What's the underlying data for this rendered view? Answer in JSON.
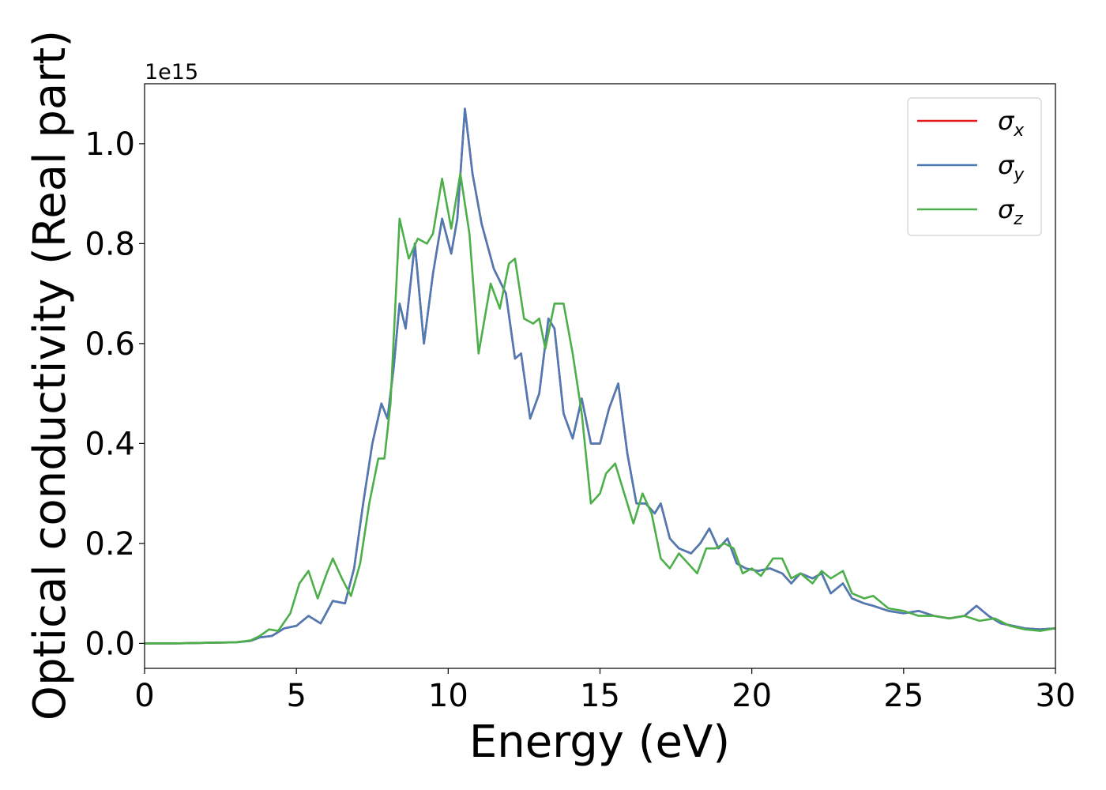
{
  "chart_data": {
    "type": "line",
    "xlabel": "Energy (eV)",
    "ylabel": "Optical conductivity (Real part)",
    "y_offset_text": "1e15",
    "xlim": [
      0,
      30
    ],
    "ylim": [
      -0.05,
      1.12
    ],
    "xticks": [
      0,
      5,
      10,
      15,
      20,
      25,
      30
    ],
    "xtick_labels": [
      "0",
      "5",
      "10",
      "15",
      "20",
      "25",
      "30"
    ],
    "yticks": [
      0.0,
      0.2,
      0.4,
      0.6,
      0.8,
      1.0
    ],
    "ytick_labels": [
      "0.0",
      "0.2",
      "0.4",
      "0.6",
      "0.8",
      "1.0"
    ],
    "grid": false,
    "legend_position": "top-right",
    "series": [
      {
        "name": "σx",
        "legend_base": "σ",
        "legend_sub": "x",
        "color": "#e41a1c",
        "x": [
          0,
          1,
          2,
          3,
          3.5,
          3.8,
          4.2,
          4.6,
          5.0,
          5.4,
          5.8,
          6.2,
          6.6,
          6.9,
          7.2,
          7.5,
          7.8,
          8.0,
          8.2,
          8.4,
          8.6,
          8.9,
          9.2,
          9.5,
          9.8,
          10.1,
          10.3,
          10.55,
          10.8,
          11.1,
          11.5,
          11.9,
          12.2,
          12.4,
          12.7,
          13.0,
          13.3,
          13.5,
          13.8,
          14.1,
          14.4,
          14.7,
          15.0,
          15.3,
          15.6,
          15.9,
          16.2,
          16.5,
          16.8,
          17.0,
          17.3,
          17.6,
          18.0,
          18.3,
          18.6,
          18.9,
          19.2,
          19.5,
          19.8,
          20.2,
          20.6,
          21.0,
          21.3,
          21.6,
          22.0,
          22.3,
          22.6,
          23.0,
          23.3,
          23.7,
          24.0,
          24.5,
          25.0,
          25.5,
          26.0,
          26.5,
          27.0,
          27.4,
          27.8,
          28.2,
          28.6,
          29.0,
          29.5,
          30.0
        ],
        "y": [
          0,
          0,
          0.001,
          0.002,
          0.005,
          0.012,
          0.015,
          0.03,
          0.035,
          0.055,
          0.04,
          0.085,
          0.08,
          0.15,
          0.28,
          0.4,
          0.48,
          0.45,
          0.55,
          0.68,
          0.63,
          0.8,
          0.6,
          0.74,
          0.85,
          0.78,
          0.85,
          1.07,
          0.94,
          0.84,
          0.75,
          0.7,
          0.57,
          0.58,
          0.45,
          0.5,
          0.65,
          0.63,
          0.46,
          0.41,
          0.49,
          0.4,
          0.4,
          0.47,
          0.52,
          0.38,
          0.28,
          0.28,
          0.26,
          0.28,
          0.21,
          0.19,
          0.18,
          0.2,
          0.23,
          0.19,
          0.21,
          0.16,
          0.15,
          0.145,
          0.15,
          0.14,
          0.12,
          0.14,
          0.13,
          0.14,
          0.1,
          0.12,
          0.09,
          0.08,
          0.075,
          0.065,
          0.06,
          0.065,
          0.055,
          0.05,
          0.055,
          0.075,
          0.055,
          0.04,
          0.035,
          0.03,
          0.028,
          0.03
        ]
      },
      {
        "name": "σy",
        "legend_base": "σ",
        "legend_sub": "y",
        "color": "#4d7bb5",
        "x": [
          0,
          1,
          2,
          3,
          3.5,
          3.8,
          4.2,
          4.6,
          5.0,
          5.4,
          5.8,
          6.2,
          6.6,
          6.9,
          7.2,
          7.5,
          7.8,
          8.0,
          8.2,
          8.4,
          8.6,
          8.9,
          9.2,
          9.5,
          9.8,
          10.1,
          10.3,
          10.55,
          10.8,
          11.1,
          11.5,
          11.9,
          12.2,
          12.4,
          12.7,
          13.0,
          13.3,
          13.5,
          13.8,
          14.1,
          14.4,
          14.7,
          15.0,
          15.3,
          15.6,
          15.9,
          16.2,
          16.5,
          16.8,
          17.0,
          17.3,
          17.6,
          18.0,
          18.3,
          18.6,
          18.9,
          19.2,
          19.5,
          19.8,
          20.2,
          20.6,
          21.0,
          21.3,
          21.6,
          22.0,
          22.3,
          22.6,
          23.0,
          23.3,
          23.7,
          24.0,
          24.5,
          25.0,
          25.5,
          26.0,
          26.5,
          27.0,
          27.4,
          27.8,
          28.2,
          28.6,
          29.0,
          29.5,
          30.0
        ],
        "y": [
          0,
          0,
          0.001,
          0.002,
          0.005,
          0.012,
          0.015,
          0.03,
          0.035,
          0.055,
          0.04,
          0.085,
          0.08,
          0.15,
          0.28,
          0.4,
          0.48,
          0.45,
          0.55,
          0.68,
          0.63,
          0.8,
          0.6,
          0.74,
          0.85,
          0.78,
          0.85,
          1.07,
          0.94,
          0.84,
          0.75,
          0.7,
          0.57,
          0.58,
          0.45,
          0.5,
          0.65,
          0.63,
          0.46,
          0.41,
          0.49,
          0.4,
          0.4,
          0.47,
          0.52,
          0.38,
          0.28,
          0.28,
          0.26,
          0.28,
          0.21,
          0.19,
          0.18,
          0.2,
          0.23,
          0.19,
          0.21,
          0.16,
          0.15,
          0.145,
          0.15,
          0.14,
          0.12,
          0.14,
          0.13,
          0.14,
          0.1,
          0.12,
          0.09,
          0.08,
          0.075,
          0.065,
          0.06,
          0.065,
          0.055,
          0.05,
          0.055,
          0.075,
          0.055,
          0.04,
          0.035,
          0.03,
          0.028,
          0.03
        ]
      },
      {
        "name": "σz",
        "legend_base": "σ",
        "legend_sub": "z",
        "color": "#4daf4a",
        "x": [
          0,
          1,
          2,
          3,
          3.5,
          3.8,
          4.1,
          4.4,
          4.8,
          5.1,
          5.4,
          5.7,
          6.0,
          6.2,
          6.5,
          6.8,
          7.1,
          7.4,
          7.7,
          7.9,
          8.1,
          8.4,
          8.7,
          9.0,
          9.3,
          9.5,
          9.8,
          10.1,
          10.4,
          10.7,
          11.0,
          11.4,
          11.7,
          12.0,
          12.2,
          12.5,
          12.8,
          13.0,
          13.2,
          13.5,
          13.8,
          14.1,
          14.4,
          14.7,
          15.0,
          15.2,
          15.5,
          15.8,
          16.1,
          16.4,
          16.7,
          17.0,
          17.3,
          17.6,
          17.9,
          18.2,
          18.5,
          18.8,
          19.1,
          19.4,
          19.7,
          20.0,
          20.3,
          20.7,
          21.0,
          21.3,
          21.6,
          22.0,
          22.3,
          22.6,
          23.0,
          23.3,
          23.7,
          24.0,
          24.5,
          25.0,
          25.5,
          26.0,
          26.5,
          27.0,
          27.5,
          28.0,
          28.5,
          29.0,
          29.5,
          30.0
        ],
        "y": [
          0,
          0,
          0.001,
          0.002,
          0.006,
          0.015,
          0.028,
          0.025,
          0.06,
          0.12,
          0.145,
          0.09,
          0.14,
          0.17,
          0.13,
          0.095,
          0.16,
          0.28,
          0.37,
          0.37,
          0.48,
          0.85,
          0.77,
          0.81,
          0.8,
          0.82,
          0.93,
          0.83,
          0.94,
          0.82,
          0.58,
          0.72,
          0.67,
          0.76,
          0.77,
          0.65,
          0.64,
          0.65,
          0.59,
          0.68,
          0.68,
          0.58,
          0.46,
          0.28,
          0.3,
          0.34,
          0.36,
          0.3,
          0.24,
          0.3,
          0.26,
          0.17,
          0.15,
          0.18,
          0.16,
          0.14,
          0.19,
          0.19,
          0.2,
          0.19,
          0.14,
          0.15,
          0.135,
          0.17,
          0.17,
          0.13,
          0.14,
          0.12,
          0.145,
          0.13,
          0.145,
          0.1,
          0.09,
          0.095,
          0.07,
          0.065,
          0.055,
          0.055,
          0.05,
          0.055,
          0.045,
          0.05,
          0.035,
          0.028,
          0.025,
          0.03
        ]
      }
    ]
  }
}
